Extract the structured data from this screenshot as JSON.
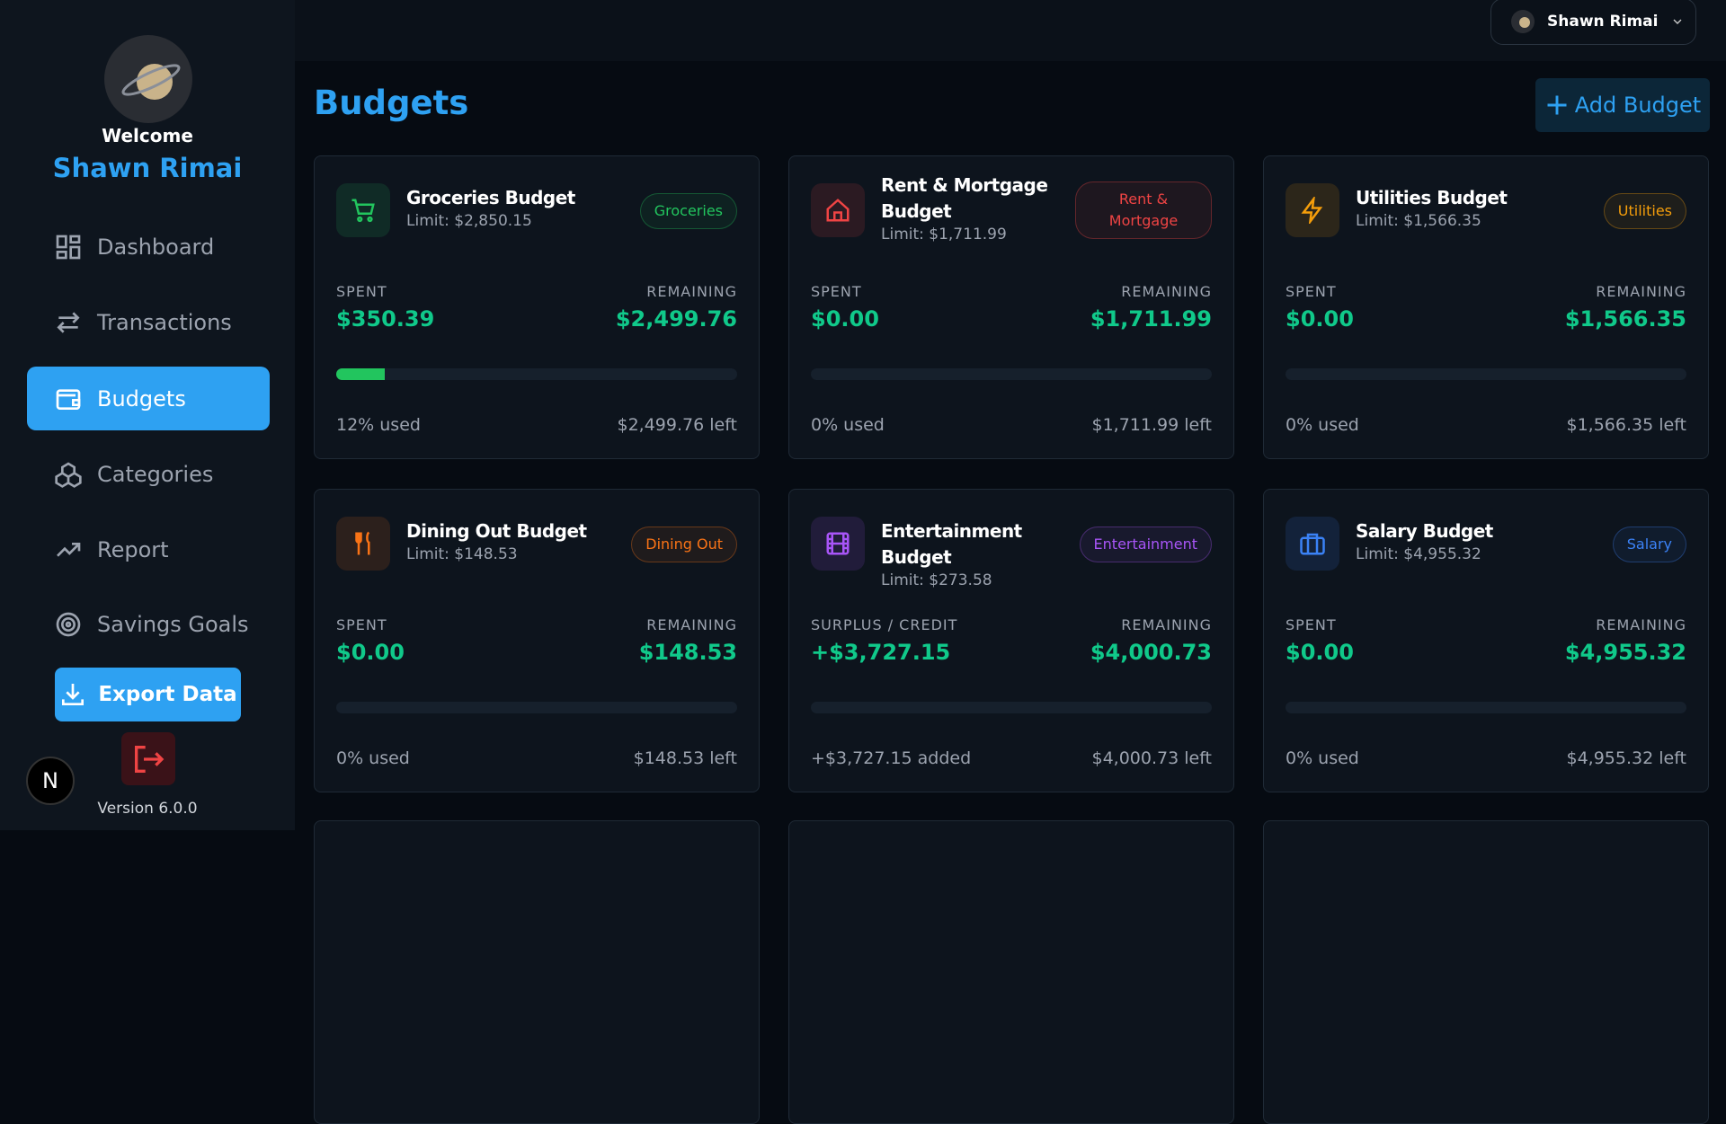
{
  "topbar": {
    "user_name": "Shawn Rimai"
  },
  "sidebar": {
    "welcome": "Welcome",
    "user_name": "Shawn Rimai",
    "nav": [
      "Dashboard",
      "Transactions",
      "Budgets",
      "Categories",
      "Report",
      "Savings Goals"
    ],
    "active": "Budgets",
    "export": "Export Data",
    "dev_badge": "N",
    "version": "Version 6.0.0"
  },
  "page": {
    "title": "Budgets",
    "add_button": "Add Budget"
  },
  "budgets": [
    {
      "title": "Groceries Budget",
      "limit": "Limit: $2,850.15",
      "badge": "Groceries",
      "color": "#22c55e",
      "spent_label": "SPENT",
      "spent": "$350.39",
      "remaining_label": "REMAINING",
      "remaining": "$2,499.76",
      "used": "12% used",
      "left": "$2,499.76 left"
    },
    {
      "title": "Rent & Mortgage Budget",
      "limit": "Limit: $1,711.99",
      "badge": "Rent & Mortgage",
      "color": "#ef4444",
      "spent_label": "SPENT",
      "spent": "$0.00",
      "remaining_label": "REMAINING",
      "remaining": "$1,711.99",
      "used": "0% used",
      "left": "$1,711.99 left"
    },
    {
      "title": "Utilities Budget",
      "limit": "Limit: $1,566.35",
      "badge": "Utilities",
      "color": "#f59e0b",
      "spent_label": "SPENT",
      "spent": "$0.00",
      "remaining_label": "REMAINING",
      "remaining": "$1,566.35",
      "used": "0% used",
      "left": "$1,566.35 left"
    },
    {
      "title": "Dining Out Budget",
      "limit": "Limit: $148.53",
      "badge": "Dining Out",
      "color": "#f97316",
      "spent_label": "SPENT",
      "spent": "$0.00",
      "remaining_label": "REMAINING",
      "remaining": "$148.53",
      "used": "0% used",
      "left": "$148.53 left"
    },
    {
      "title": "Entertainment Budget",
      "limit": "Limit: $273.58",
      "badge": "Entertainment",
      "color": "#a855f7",
      "spent_label": "SURPLUS / CREDIT",
      "spent": "+$3,727.15",
      "remaining_label": "REMAINING",
      "remaining": "$4,000.73",
      "used": "+$3,727.15 added",
      "left": "$4,000.73 left"
    },
    {
      "title": "Salary Budget",
      "limit": "Limit: $4,955.32",
      "badge": "Salary",
      "color": "#3b82f6",
      "spent_label": "SPENT",
      "spent": "$0.00",
      "remaining_label": "REMAINING",
      "remaining": "$4,955.32",
      "used": "0% used",
      "left": "$4,955.32 left"
    }
  ]
}
